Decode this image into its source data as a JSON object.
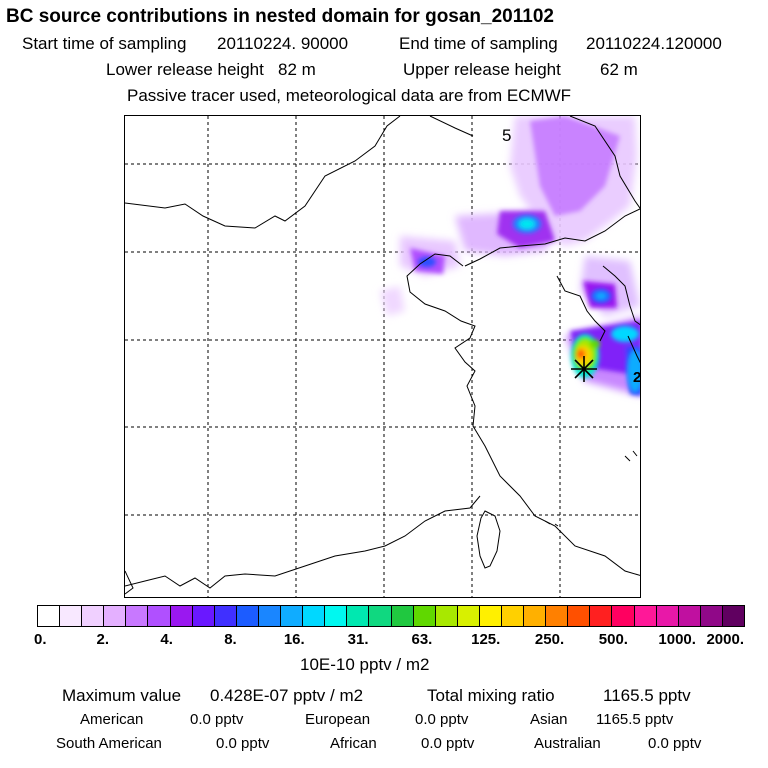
{
  "title": "BC  source contributions in nested domain for gosan_201102",
  "sampling": {
    "start_label": "Start time of sampling",
    "start_value": "20110224. 90000",
    "end_label": "End time of sampling",
    "end_value": "20110224.120000"
  },
  "release": {
    "lower_label": "Lower release height",
    "lower_value": "82 m",
    "upper_label": "Upper release height",
    "upper_value": "62 m"
  },
  "note": "Passive tracer used, meteorological data are from ECMWF",
  "map": {
    "corner_label": "5",
    "edge_label": "2",
    "receptor_marker": "gosan-star"
  },
  "colorbar": {
    "colors": [
      "#ffffff",
      "#f8e8ff",
      "#f0d0ff",
      "#e4b0ff",
      "#c878ff",
      "#b050ff",
      "#9a18f0",
      "#6a18ff",
      "#4030ff",
      "#1c5cff",
      "#1a86ff",
      "#10acff",
      "#00d8ff",
      "#00f8f0",
      "#00e8b0",
      "#10d880",
      "#20c840",
      "#60d800",
      "#a8e800",
      "#d8f000",
      "#fff000",
      "#ffd000",
      "#ffb000",
      "#ff8000",
      "#ff5000",
      "#ff2020",
      "#ff0060",
      "#ff1898",
      "#e818a8",
      "#c010a0",
      "#900888",
      "#600060"
    ],
    "ticks": [
      "0.",
      "2.",
      "4.",
      "8.",
      "16.",
      "31.",
      "63.",
      "125.",
      "250.",
      "500.",
      "1000.",
      "2000."
    ],
    "units": "10E-10 pptv / m2"
  },
  "stats": {
    "max_label": "Maximum value",
    "max_value": "0.428E-07 pptv / m2",
    "total_label": "Total mixing ratio",
    "total_value": "1165.5 pptv"
  },
  "regions": [
    {
      "name": "American",
      "value": "0.0 pptv"
    },
    {
      "name": "European",
      "value": "0.0 pptv"
    },
    {
      "name": "Asian",
      "value": "1165.5 pptv"
    },
    {
      "name": "South American",
      "value": "0.0 pptv"
    },
    {
      "name": "African",
      "value": "0.0 pptv"
    },
    {
      "name": "Australian",
      "value": "0.0 pptv"
    }
  ]
}
